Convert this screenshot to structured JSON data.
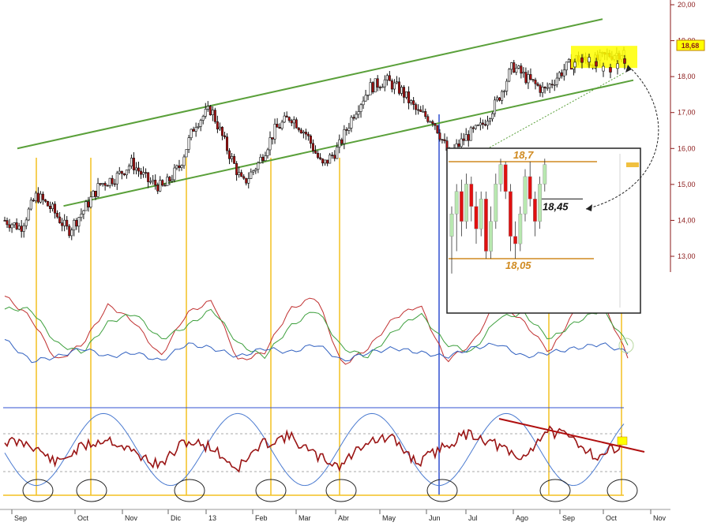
{
  "chart_data": {
    "type": "candlestick",
    "price_panel": {
      "y_ticks": [
        "20,00",
        "19,00",
        "18,00",
        "17,00",
        "16,00",
        "15,00",
        "14,00",
        "13,00"
      ],
      "y_tick_values": [
        20,
        19,
        18,
        17,
        16,
        15,
        14,
        13
      ],
      "ylim": [
        12.6,
        20.2
      ],
      "last_price_label": "18,68",
      "last_price": 18.68,
      "x_months": [
        "Sep",
        "Oct",
        "Nov",
        "Dic",
        "13",
        "Feb",
        "Mar",
        "Abr",
        "May",
        "Jun",
        "Jul",
        "Ago",
        "Sep",
        "Oct",
        "Nov"
      ],
      "approx_closes": [
        14.0,
        13.8,
        14.7,
        14.3,
        13.7,
        14.3,
        15.0,
        15.2,
        15.6,
        15.1,
        14.9,
        15.5,
        16.7,
        17.1,
        16.0,
        15.0,
        15.6,
        16.5,
        16.9,
        16.4,
        15.5,
        16.0,
        17.0,
        17.7,
        17.9,
        17.6,
        17.0,
        16.8,
        15.8,
        16.3,
        16.6,
        17.3,
        18.3,
        17.9,
        17.6,
        18.1,
        18.5,
        18.4,
        18.6,
        18.68
      ],
      "channel_upper": [
        [
          0.0,
          16.0
        ],
        [
          38.0,
          19.6
        ]
      ],
      "channel_lower": [
        [
          3.0,
          14.4
        ],
        [
          40.0,
          17.9
        ]
      ]
    },
    "inset": {
      "resistance_label": "18,7",
      "resistance": 18.7,
      "support_label": "18,05",
      "support": 18.05,
      "midline_label": "18,45",
      "midline": 18.45,
      "candles": [
        {
          "o": 18.2,
          "c": 18.35,
          "h": 18.4,
          "l": 17.95
        },
        {
          "o": 18.35,
          "c": 18.5,
          "h": 18.55,
          "l": 18.1
        },
        {
          "o": 18.5,
          "c": 18.3,
          "h": 18.58,
          "l": 18.2
        },
        {
          "o": 18.3,
          "c": 18.55,
          "h": 18.62,
          "l": 18.25
        },
        {
          "o": 18.55,
          "c": 18.4,
          "h": 18.6,
          "l": 18.3
        },
        {
          "o": 18.4,
          "c": 18.25,
          "h": 18.5,
          "l": 18.15
        },
        {
          "o": 18.25,
          "c": 18.45,
          "h": 18.5,
          "l": 18.2
        },
        {
          "o": 18.45,
          "c": 18.1,
          "h": 18.5,
          "l": 18.05
        },
        {
          "o": 18.1,
          "c": 18.3,
          "h": 18.4,
          "l": 18.05
        },
        {
          "o": 18.3,
          "c": 18.55,
          "h": 18.62,
          "l": 18.25
        },
        {
          "o": 18.55,
          "c": 18.68,
          "h": 18.72,
          "l": 18.5
        },
        {
          "o": 18.68,
          "c": 18.5,
          "h": 18.7,
          "l": 18.45
        },
        {
          "o": 18.5,
          "c": 18.2,
          "h": 18.55,
          "l": 18.1
        },
        {
          "o": 18.2,
          "c": 18.15,
          "h": 18.3,
          "l": 18.05
        },
        {
          "o": 18.15,
          "c": 18.35,
          "h": 18.4,
          "l": 18.1
        },
        {
          "o": 18.35,
          "c": 18.6,
          "h": 18.65,
          "l": 18.3
        },
        {
          "o": 18.6,
          "c": 18.45,
          "h": 18.7,
          "l": 18.4
        },
        {
          "o": 18.45,
          "c": 18.3,
          "h": 18.5,
          "l": 18.2
        },
        {
          "o": 18.3,
          "c": 18.55,
          "h": 18.6,
          "l": 18.25
        },
        {
          "o": 18.55,
          "c": 18.68,
          "h": 18.72,
          "l": 18.5
        }
      ]
    },
    "oscillator_panel_1": {
      "series": [
        {
          "color": "#c03030",
          "values": [
            0.9,
            0.4,
            -0.6,
            -0.2,
            0.7,
            0.3,
            -0.5,
            0.5,
            0.8,
            -0.6,
            -0.4,
            0.6,
            0.9,
            -0.7,
            -0.3,
            0.4,
            0.7,
            -0.6,
            -0.2,
            0.8,
            0.3,
            -0.4,
            0.6,
            0.8,
            -0.5
          ]
        },
        {
          "color": "#3ea03e",
          "values": [
            0.6,
            0.6,
            -0.2,
            -0.4,
            0.3,
            0.5,
            -0.1,
            0.2,
            0.6,
            -0.2,
            -0.5,
            0.2,
            0.6,
            -0.3,
            -0.5,
            0.1,
            0.5,
            -0.2,
            -0.4,
            0.4,
            0.5,
            -0.1,
            0.3,
            0.6,
            -0.2
          ]
        },
        {
          "color": "#3060c0",
          "values": [
            -0.1,
            -0.6,
            -0.5,
            -0.3,
            -0.5,
            -0.4,
            -0.6,
            -0.2,
            -0.3,
            -0.5,
            -0.3,
            -0.4,
            -0.2,
            -0.6,
            -0.4,
            -0.3,
            -0.4,
            -0.5,
            -0.3,
            -0.2,
            -0.5,
            -0.4,
            -0.3,
            -0.2,
            -0.4
          ]
        }
      ]
    },
    "oscillator_panel_2": {
      "series": [
        {
          "color": "#9a1515",
          "values": [
            0.3,
            0.2,
            -0.5,
            0.1,
            0.4,
            -0.1,
            -0.6,
            0.3,
            0.1,
            -0.7,
            0.2,
            0.5,
            -0.2,
            -0.6,
            0.3,
            0.4,
            -0.5,
            0.1,
            0.6,
            0.2,
            -0.4,
            0.7,
            0.4,
            -0.3,
            0.3
          ]
        },
        {
          "color": "#4a7ad0",
          "values": [
            0.9,
            -0.9,
            0.9,
            -0.9,
            0.9,
            -0.9,
            0.9,
            -0.9,
            0.9,
            -0.9,
            0.9,
            -0.9,
            0.9,
            -0.9,
            0.9,
            -0.9,
            0.9,
            -0.9,
            0.9,
            -0.9,
            0.9,
            -0.9,
            0.9,
            -0.9,
            0.9
          ]
        }
      ]
    },
    "colors": {
      "bull_candle": "#ffffff",
      "bear_candle": "#b01010",
      "channel": "#5aa03a",
      "cycle_lines": "#f4c020",
      "blue_line": "#3050d0",
      "highlight": "#ffff00",
      "inset_levels": "#d08a20",
      "inset_bull": "#b8e8b0",
      "inset_bear": "#e01010",
      "axis_text": "#8b1a1a"
    }
  }
}
